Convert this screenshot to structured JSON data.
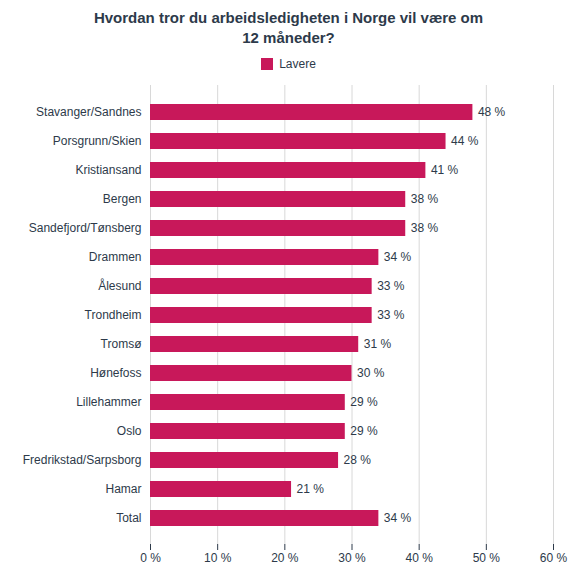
{
  "chart_data": {
    "type": "bar",
    "orientation": "horizontal",
    "title": "Hvordan tror du arbeidsledigheten i Norge vil være om\n12 måneder?",
    "categories": [
      "Stavanger/Sandnes",
      "Porsgrunn/Skien",
      "Kristiansand",
      "Bergen",
      "Sandefjord/Tønsberg",
      "Drammen",
      "Ålesund",
      "Trondheim",
      "Tromsø",
      "Hønefoss",
      "Lillehammer",
      "Oslo",
      "Fredrikstad/Sarpsborg",
      "Hamar",
      "Total"
    ],
    "series": [
      {
        "name": "Lavere",
        "color": "#c8185a",
        "values": [
          48,
          44,
          41,
          38,
          38,
          34,
          33,
          33,
          31,
          30,
          29,
          29,
          28,
          21,
          34
        ],
        "value_labels": [
          "48 %",
          "44 %",
          "41 %",
          "38 %",
          "38 %",
          "34 %",
          "33 %",
          "33 %",
          "31 %",
          "30 %",
          "29 %",
          "29 %",
          "28 %",
          "21 %",
          "34 %"
        ]
      }
    ],
    "xlim": [
      0,
      60
    ],
    "xticks": [
      {
        "value": 0,
        "label": "0 %"
      },
      {
        "value": 10,
        "label": "10 %"
      },
      {
        "value": 20,
        "label": "20 %"
      },
      {
        "value": 30,
        "label": "30 %"
      },
      {
        "value": 40,
        "label": "40 %"
      },
      {
        "value": 50,
        "label": "50 %"
      },
      {
        "value": 60,
        "label": "60 %"
      }
    ],
    "grid": true,
    "legend": "top",
    "data_labels": true
  }
}
